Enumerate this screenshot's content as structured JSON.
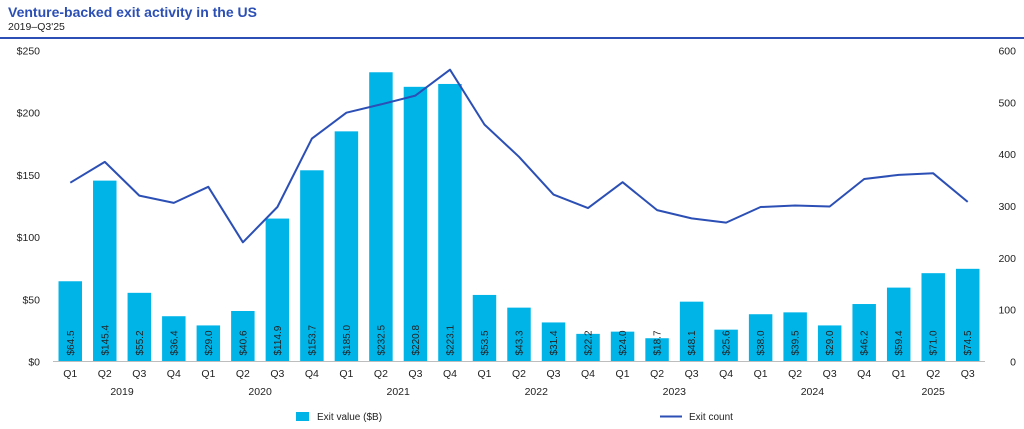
{
  "chart_data": {
    "type": "bar",
    "title": "Venture-backed exit activity in the US",
    "subtitle": "2019–Q3'25",
    "categories": [
      "Q1",
      "Q2",
      "Q3",
      "Q4",
      "Q1",
      "Q2",
      "Q3",
      "Q4",
      "Q1",
      "Q2",
      "Q3",
      "Q4",
      "Q1",
      "Q2",
      "Q3",
      "Q4",
      "Q1",
      "Q2",
      "Q3",
      "Q4",
      "Q1",
      "Q2",
      "Q3",
      "Q4",
      "Q1",
      "Q2",
      "Q3"
    ],
    "years": [
      {
        "label": "2019",
        "span": [
          0,
          3
        ]
      },
      {
        "label": "2020",
        "span": [
          4,
          7
        ]
      },
      {
        "label": "2021",
        "span": [
          8,
          11
        ]
      },
      {
        "label": "2022",
        "span": [
          12,
          15
        ]
      },
      {
        "label": "2023",
        "span": [
          16,
          19
        ]
      },
      {
        "label": "2024",
        "span": [
          20,
          23
        ]
      },
      {
        "label": "2025",
        "span": [
          24,
          26
        ]
      }
    ],
    "series": [
      {
        "name": "Exit value ($B)",
        "type": "bar",
        "axis": "left",
        "color": "#00B4E8",
        "values": [
          64.5,
          145.4,
          55.2,
          36.4,
          29.0,
          40.6,
          114.9,
          153.7,
          185.0,
          232.5,
          220.8,
          223.1,
          53.5,
          43.3,
          31.4,
          22.2,
          24.0,
          18.7,
          48.1,
          25.6,
          38.0,
          39.5,
          29.0,
          46.2,
          59.4,
          71.0,
          74.5
        ],
        "labels": [
          "$64.5",
          "$145.4",
          "$55.2",
          "$36.4",
          "$29.0",
          "$40.6",
          "$114.9",
          "$153.7",
          "$185.0",
          "$232.5",
          "$220.8",
          "$223.1",
          "$53.5",
          "$43.3",
          "$31.4",
          "$22.2",
          "$24.0",
          "$18.7",
          "$48.1",
          "$25.6",
          "$38.0",
          "$39.5",
          "$29.0",
          "$46.2",
          "$59.4",
          "$71.0",
          "$74.5"
        ]
      },
      {
        "name": "Exit count",
        "type": "line",
        "axis": "right",
        "color": "#2B4FB5",
        "values": [
          345,
          385,
          320,
          306,
          337,
          230,
          298,
          430,
          480,
          496,
          513,
          563,
          457,
          395,
          322,
          296,
          346,
          292,
          276,
          268,
          298,
          301,
          299,
          352,
          360,
          363,
          308
        ]
      }
    ],
    "yleft": {
      "lim": [
        0,
        250
      ],
      "ticks": [
        0,
        50,
        100,
        150,
        200,
        250
      ],
      "tick_labels": [
        "$0",
        "$50",
        "$100",
        "$150",
        "$200",
        "$250"
      ]
    },
    "yright": {
      "lim": [
        0,
        600
      ],
      "ticks": [
        0,
        100,
        200,
        300,
        400,
        500,
        600
      ],
      "tick_labels": [
        "0",
        "100",
        "200",
        "300",
        "400",
        "500",
        "600"
      ]
    },
    "grid": false,
    "legend_position": "bottom"
  }
}
